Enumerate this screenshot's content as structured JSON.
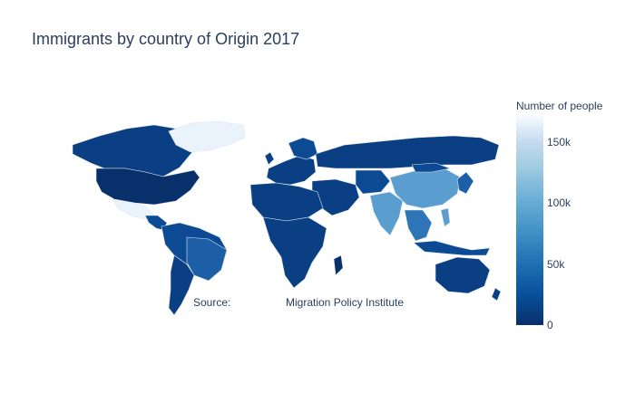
{
  "title": "Immigrants by country of Origin 2017",
  "colorbar": {
    "title": "Number of people",
    "ticks": [
      "150k",
      "100k",
      "50k",
      "0"
    ],
    "colorscale": [
      "#08306b",
      "#08519c",
      "#2171b5",
      "#4292c6",
      "#6baed6",
      "#9ecae1",
      "#c6dbef",
      "#f7fbff"
    ]
  },
  "annotation": {
    "source_label": "Source:",
    "source_value": "Migration Policy Institute"
  },
  "map_colors": {
    "ocean": "#ffffff",
    "borders": "#dfe6ee",
    "low": "#08306b",
    "mid_low": "#0d4a94",
    "mid": "#2d75b7",
    "high": "#5a9ecf",
    "very_high": "#eaf2fb"
  }
}
